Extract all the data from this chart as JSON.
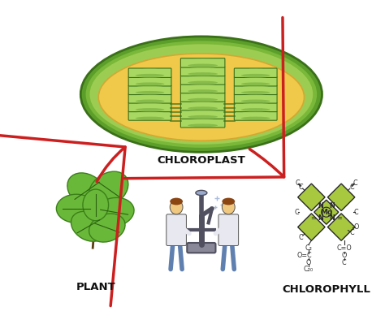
{
  "labels": {
    "chloroplast": "CHLOROPLAST",
    "plant": "PLANT",
    "chlorophyll": "CHLOROPHYLL"
  },
  "colors": {
    "background": "#ffffff",
    "cp_outer1": "#5c9e2a",
    "cp_outer2": "#7ab83a",
    "cp_outer3": "#9dcc52",
    "cp_stroma": "#f0c84a",
    "cp_stroma_edge": "#d4a830",
    "granum_top": "#a8d862",
    "granum_side": "#6aaa30",
    "granum_dark": "#4a8820",
    "granum_edge": "#3a7018",
    "granum_shadow": "#5a9828",
    "leaf_main": "#6ab83a",
    "leaf_light": "#8ed055",
    "leaf_dark": "#3a8018",
    "leaf_vein": "#2a6010",
    "stem_color": "#5a4010",
    "chem_fill": "#a8c840",
    "chem_edge": "#2a2a2a",
    "arrow_color": "#cc2020",
    "label_color": "#111111",
    "sci_skin": "#f0c880",
    "sci_hair": "#8b4513",
    "sci_coat": "#e8e8f0",
    "sci_pants": "#6080b0",
    "micro_color": "#505060"
  },
  "label_fontsize": 9.5,
  "label_fontweight": "bold",
  "label_fontfamily": "DejaVu Sans"
}
